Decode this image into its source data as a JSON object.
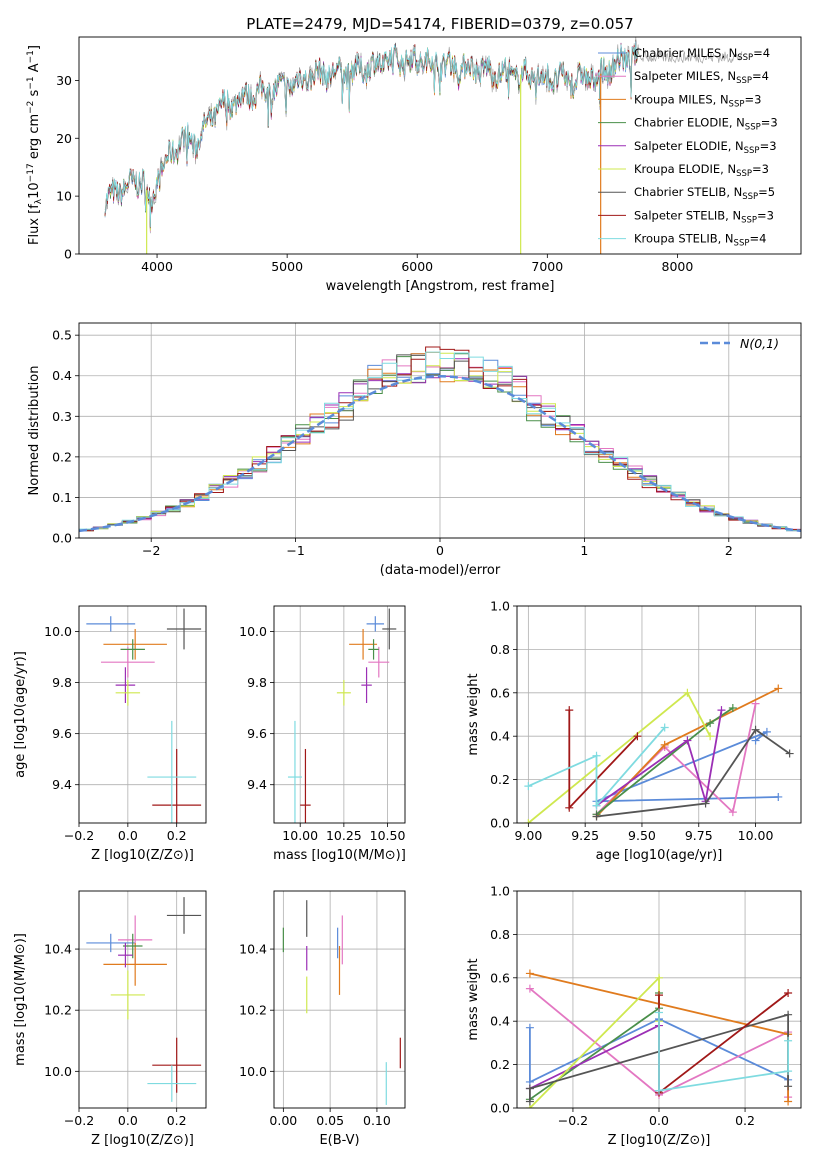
{
  "figure_title": "PLATE=2479, MJD=54174, FIBERID=0379, z=0.057",
  "models": [
    {
      "name": "Chabrier MILES",
      "nssp": "4",
      "color": "#5b8bd9"
    },
    {
      "name": "Salpeter MILES",
      "nssp": "4",
      "color": "#e377c2"
    },
    {
      "name": "Kroupa MILES",
      "nssp": "3",
      "color": "#e07b1e"
    },
    {
      "name": "Chabrier ELODIE",
      "nssp": "3",
      "color": "#4a8f4a"
    },
    {
      "name": "Salpeter ELODIE",
      "nssp": "3",
      "color": "#9b2fb5"
    },
    {
      "name": "Kroupa ELODIE",
      "nssp": "3",
      "color": "#cfe84f"
    },
    {
      "name": "Chabrier STELIB",
      "nssp": "5",
      "color": "#555555"
    },
    {
      "name": "Salpeter STELIB",
      "nssp": "3",
      "color": "#a01818"
    },
    {
      "name": "Kroupa STELIB",
      "nssp": "4",
      "color": "#7fdbe0"
    }
  ],
  "chart_data": [
    {
      "id": "spectrum",
      "type": "line",
      "xlabel": "wavelength [Angstrom, rest frame]",
      "ylabel": "Flux [f_λ 10^-17 erg cm^-2 s^-1 A^-1]",
      "xlim": [
        3400,
        8950
      ],
      "ylim": [
        0,
        37.5
      ],
      "xticks": [
        4000,
        5000,
        6000,
        7000,
        8000
      ],
      "yticks": [
        0,
        10,
        20,
        30
      ],
      "legend": "right",
      "continuum": {
        "x": [
          3600,
          3700,
          3800,
          3900,
          3950,
          4000,
          4100,
          4200,
          4300,
          4400,
          4500,
          4700,
          5000,
          5200,
          5500,
          5800,
          6000,
          6300,
          6600,
          6800,
          7000,
          7200,
          7400,
          7600,
          7700
        ],
        "y": [
          9,
          11,
          12,
          13,
          8,
          13,
          17,
          20,
          19,
          23,
          25.5,
          27.5,
          29,
          31,
          31.5,
          33.5,
          33.5,
          32.5,
          31.5,
          31,
          30.5,
          30,
          31,
          34,
          34
        ]
      },
      "spikes": [
        {
          "x": 3920,
          "color": "#cfe84f"
        },
        {
          "x": 6795,
          "color": "#cfe84f"
        },
        {
          "x": 7410,
          "color": "#e07b1e"
        }
      ]
    },
    {
      "id": "residuals",
      "type": "histogram",
      "xlabel": "(data-model)/error",
      "ylabel": "Normed distribution",
      "xlim": [
        -2.5,
        2.5
      ],
      "ylim": [
        0,
        0.53
      ],
      "xticks": [
        -2,
        -1,
        0,
        1,
        2
      ],
      "yticks": [
        0.0,
        0.1,
        0.2,
        0.3,
        0.4,
        0.5
      ],
      "legend_label": "N(0,1)",
      "legend_color": "#5b8bd9",
      "legend": "top-right",
      "bin_width": 0.1,
      "grid": true
    },
    {
      "id": "age-vs-z",
      "type": "errorbar",
      "xlabel": "Z [log10(Z/Z⊙)]",
      "ylabel": "age [log10(age/yr)]",
      "xlim": [
        -0.2,
        0.32
      ],
      "ylim": [
        9.25,
        10.1
      ],
      "xticks": [
        -0.2,
        0.0,
        0.2
      ],
      "yticks": [
        9.4,
        9.6,
        9.8,
        10.0
      ],
      "points": [
        {
          "x": -0.07,
          "y": 10.03,
          "xerr": 0.1,
          "yerr": 0.03
        },
        {
          "x": 0.0,
          "y": 9.88,
          "xerr": 0.11,
          "yerr": 0.06
        },
        {
          "x": 0.03,
          "y": 9.95,
          "xerr": 0.13,
          "yerr": 0.06
        },
        {
          "x": 0.02,
          "y": 9.93,
          "xerr": 0.05,
          "yerr": 0.04
        },
        {
          "x": -0.01,
          "y": 9.79,
          "xerr": 0.04,
          "yerr": 0.07
        },
        {
          "x": 0.0,
          "y": 9.76,
          "xerr": 0.05,
          "yerr": 0.05
        },
        {
          "x": 0.23,
          "y": 10.01,
          "xerr": 0.07,
          "yerr": 0.08
        },
        {
          "x": 0.2,
          "y": 9.32,
          "xerr": 0.1,
          "yerr": 0.22
        },
        {
          "x": 0.18,
          "y": 9.43,
          "xerr": 0.1,
          "yerr": 0.22
        }
      ]
    },
    {
      "id": "age-vs-mass",
      "type": "errorbar",
      "xlabel": "mass [log10(M/M⊙)]",
      "ylabel": "",
      "xlim": [
        9.85,
        10.6
      ],
      "ylim": [
        9.25,
        10.1
      ],
      "xticks": [
        10.0,
        10.25,
        10.5
      ],
      "yticks": [
        9.4,
        9.6,
        9.8,
        10.0
      ],
      "points": [
        {
          "x": 10.43,
          "y": 10.03,
          "xerr": 0.05,
          "yerr": 0.03
        },
        {
          "x": 10.45,
          "y": 9.88,
          "xerr": 0.06,
          "yerr": 0.06
        },
        {
          "x": 10.36,
          "y": 9.95,
          "xerr": 0.08,
          "yerr": 0.06
        },
        {
          "x": 10.42,
          "y": 9.93,
          "xerr": 0.03,
          "yerr": 0.04
        },
        {
          "x": 10.38,
          "y": 9.79,
          "xerr": 0.03,
          "yerr": 0.07
        },
        {
          "x": 10.25,
          "y": 9.76,
          "xerr": 0.04,
          "yerr": 0.05
        },
        {
          "x": 10.51,
          "y": 10.01,
          "xerr": 0.04,
          "yerr": 0.08
        },
        {
          "x": 10.03,
          "y": 9.32,
          "xerr": 0.03,
          "yerr": 0.22
        },
        {
          "x": 9.97,
          "y": 9.43,
          "xerr": 0.04,
          "yerr": 0.22
        }
      ]
    },
    {
      "id": "weight-vs-age",
      "type": "line",
      "xlabel": "age [log10(age/yr)]",
      "ylabel": "mass weight",
      "xlim": [
        8.95,
        10.2
      ],
      "ylim": [
        0,
        1
      ],
      "xticks": [
        9.0,
        9.25,
        9.5,
        9.75,
        10.0
      ],
      "yticks": [
        0.0,
        0.2,
        0.4,
        0.6,
        0.8,
        1.0
      ],
      "series": [
        {
          "x": [
            10.1,
            9.3,
            10.05,
            10.0
          ],
          "y": [
            0.12,
            0.1,
            0.42,
            0.38
          ]
        },
        {
          "x": [
            9.3,
            9.6,
            9.9,
            10.0
          ],
          "y": [
            0.04,
            0.35,
            0.05,
            0.55
          ]
        },
        {
          "x": [
            9.3,
            9.6,
            10.1
          ],
          "y": [
            0.03,
            0.36,
            0.62
          ]
        },
        {
          "x": [
            9.3,
            9.8,
            9.9
          ],
          "y": [
            0.04,
            0.46,
            0.53
          ]
        },
        {
          "x": [
            9.3,
            9.7,
            9.78,
            9.85
          ],
          "y": [
            0.08,
            0.38,
            0.1,
            0.52
          ]
        },
        {
          "x": [
            9.0,
            9.7,
            9.8
          ],
          "y": [
            0.0,
            0.6,
            0.4
          ]
        },
        {
          "x": [
            9.3,
            9.78,
            10.0,
            10.15
          ],
          "y": [
            0.03,
            0.09,
            0.43,
            0.32
          ]
        },
        {
          "x": [
            9.18,
            9.18,
            9.48
          ],
          "y": [
            0.52,
            0.07,
            0.4
          ]
        },
        {
          "x": [
            9.0,
            9.3,
            9.3,
            9.6
          ],
          "y": [
            0.17,
            0.31,
            0.08,
            0.44
          ]
        }
      ]
    },
    {
      "id": "mass-vs-z",
      "type": "errorbar",
      "xlabel": "Z [log10(Z/Z⊙)]",
      "ylabel": "mass [log10(M/M⊙)]",
      "xlim": [
        -0.2,
        0.32
      ],
      "ylim": [
        9.88,
        10.59
      ],
      "xticks": [
        -0.2,
        0.0,
        0.2
      ],
      "yticks": [
        10.0,
        10.2,
        10.4
      ],
      "points": [
        {
          "x": -0.07,
          "y": 10.42,
          "xerr": 0.1,
          "yerr": 0.03
        },
        {
          "x": 0.03,
          "y": 10.43,
          "xerr": 0.07,
          "yerr": 0.08
        },
        {
          "x": 0.03,
          "y": 10.35,
          "xerr": 0.13,
          "yerr": 0.07
        },
        {
          "x": 0.02,
          "y": 10.41,
          "xerr": 0.04,
          "yerr": 0.04
        },
        {
          "x": -0.01,
          "y": 10.38,
          "xerr": 0.03,
          "yerr": 0.04
        },
        {
          "x": 0.0,
          "y": 10.25,
          "xerr": 0.07,
          "yerr": 0.08
        },
        {
          "x": 0.23,
          "y": 10.51,
          "xerr": 0.07,
          "yerr": 0.06
        },
        {
          "x": 0.2,
          "y": 10.02,
          "xerr": 0.1,
          "yerr": 0.09
        },
        {
          "x": 0.18,
          "y": 9.96,
          "xerr": 0.1,
          "yerr": 0.06
        }
      ]
    },
    {
      "id": "mass-vs-ebv",
      "type": "errorbar",
      "xlabel": "E(B-V)",
      "ylabel": "",
      "xlim": [
        -0.01,
        0.13
      ],
      "ylim": [
        9.88,
        10.59
      ],
      "xticks": [
        0.0,
        0.05,
        0.1
      ],
      "yticks": [
        10.0,
        10.2,
        10.4
      ],
      "points": [
        {
          "x": 0.058,
          "y": 10.42,
          "xerr": 0.0,
          "yerr": 0.05
        },
        {
          "x": 0.063,
          "y": 10.43,
          "xerr": 0.0,
          "yerr": 0.08
        },
        {
          "x": 0.06,
          "y": 10.33,
          "xerr": 0.0,
          "yerr": 0.08
        },
        {
          "x": 0.0,
          "y": 10.43,
          "xerr": 0.0,
          "yerr": 0.04
        },
        {
          "x": 0.025,
          "y": 10.37,
          "xerr": 0.0,
          "yerr": 0.04
        },
        {
          "x": 0.025,
          "y": 10.25,
          "xerr": 0.0,
          "yerr": 0.06
        },
        {
          "x": 0.025,
          "y": 10.5,
          "xerr": 0.0,
          "yerr": 0.06
        },
        {
          "x": 0.125,
          "y": 10.06,
          "xerr": 0.0,
          "yerr": 0.05
        },
        {
          "x": 0.11,
          "y": 9.96,
          "xerr": 0.0,
          "yerr": 0.07
        }
      ]
    },
    {
      "id": "weight-vs-z",
      "type": "line",
      "xlabel": "Z [log10(Z/Z⊙)]",
      "ylabel": "mass weight",
      "xlim": [
        -0.33,
        0.33
      ],
      "ylim": [
        0,
        1
      ],
      "xticks": [
        -0.2,
        0.0,
        0.2
      ],
      "yticks": [
        0.0,
        0.2,
        0.4,
        0.6,
        0.8,
        1.0
      ],
      "series": [
        {
          "x": [
            -0.3,
            -0.3,
            0.0,
            0.3
          ],
          "y": [
            0.37,
            0.12,
            0.41,
            0.13
          ]
        },
        {
          "x": [
            -0.3,
            0.0,
            0.3,
            0.3
          ],
          "y": [
            0.55,
            0.06,
            0.35,
            0.05
          ]
        },
        {
          "x": [
            -0.3,
            0.3,
            0.3
          ],
          "y": [
            0.62,
            0.34,
            0.03
          ]
        },
        {
          "x": [
            -0.3,
            0.0,
            0.0
          ],
          "y": [
            0.04,
            0.46,
            0.53
          ]
        },
        {
          "x": [
            -0.3,
            0.0,
            0.0
          ],
          "y": [
            0.09,
            0.38,
            0.08
          ]
        },
        {
          "x": [
            -0.3,
            0.0,
            0.0
          ],
          "y": [
            0.0,
            0.6,
            0.4
          ]
        },
        {
          "x": [
            -0.3,
            -0.3,
            0.3,
            0.3
          ],
          "y": [
            0.03,
            0.09,
            0.43,
            0.1
          ]
        },
        {
          "x": [
            0.0,
            0.0,
            0.3
          ],
          "y": [
            0.52,
            0.07,
            0.53
          ]
        },
        {
          "x": [
            0.0,
            0.0,
            0.3,
            0.3
          ],
          "y": [
            0.44,
            0.08,
            0.17,
            0.31
          ]
        }
      ]
    }
  ]
}
